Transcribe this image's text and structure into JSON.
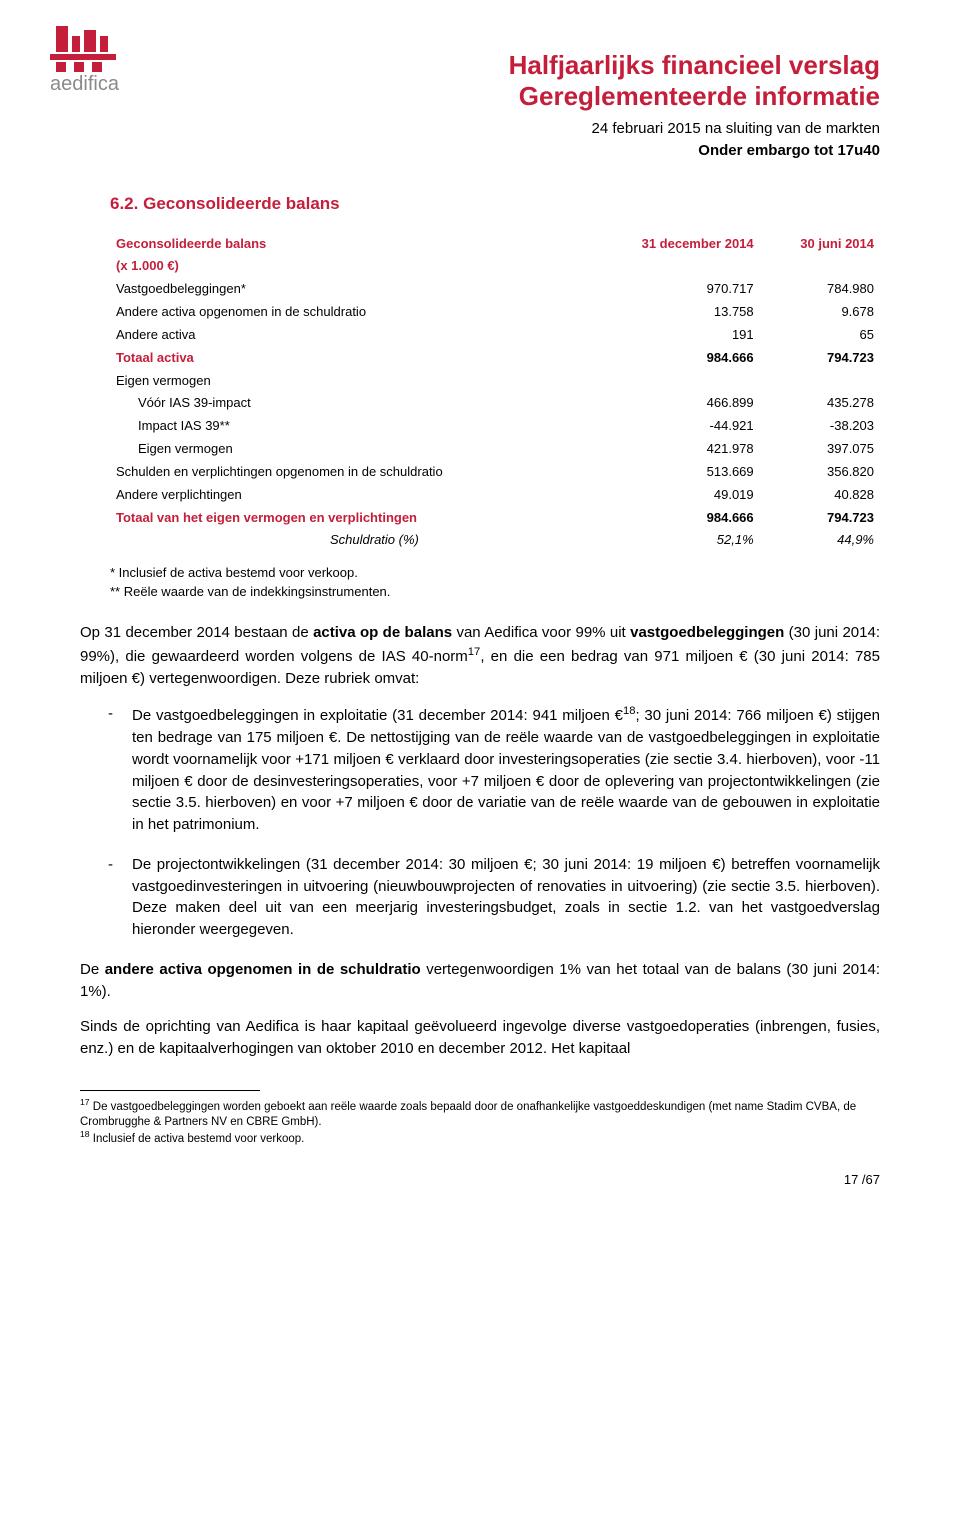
{
  "brand": {
    "name": "aedifica",
    "logo_fill": "#c41e3a",
    "logo_text_color": "#8a8a8a"
  },
  "header": {
    "title1": "Halfjaarlijks financieel verslag",
    "title2": "Gereglementeerde informatie",
    "line1": "24 februari 2015 na sluiting van de markten",
    "line2": "Onder embargo tot 17u40"
  },
  "section": {
    "number": "6.2.",
    "title": "Geconsolideerde balans"
  },
  "table": {
    "header_label": "Geconsolideerde balans",
    "header_sub": "(x 1.000 €)",
    "col1": "31 december 2014",
    "col2": "30 juni 2014",
    "rows": [
      {
        "label": "Vastgoedbeleggingen*",
        "v1": "970.717",
        "v2": "784.980",
        "style": "plain"
      },
      {
        "label": "Andere activa opgenomen in de schuldratio",
        "v1": "13.758",
        "v2": "9.678",
        "style": "plain"
      },
      {
        "label": "Andere activa",
        "v1": "191",
        "v2": "65",
        "style": "plain"
      },
      {
        "label": "Totaal activa",
        "v1": "984.666",
        "v2": "794.723",
        "style": "bold"
      },
      {
        "label": "Eigen vermogen",
        "v1": "",
        "v2": "",
        "style": "plain"
      },
      {
        "label": "Vóór IAS 39-impact",
        "v1": "466.899",
        "v2": "435.278",
        "style": "indent"
      },
      {
        "label": "Impact IAS 39**",
        "v1": "-44.921",
        "v2": "-38.203",
        "style": "indent"
      },
      {
        "label": "Eigen vermogen",
        "v1": "421.978",
        "v2": "397.075",
        "style": "indent"
      },
      {
        "label": "Schulden en verplichtingen opgenomen in de schuldratio",
        "v1": "513.669",
        "v2": "356.820",
        "style": "plain"
      },
      {
        "label": "Andere verplichtingen",
        "v1": "49.019",
        "v2": "40.828",
        "style": "plain"
      },
      {
        "label": "Totaal van het eigen vermogen en verplichtingen",
        "v1": "984.666",
        "v2": "794.723",
        "style": "bold"
      },
      {
        "label": "Schuldratio (%)",
        "v1": "52,1%",
        "v2": "44,9%",
        "style": "italic"
      }
    ]
  },
  "notes": {
    "n1": "* Inclusief de activa bestemd voor verkoop.",
    "n2": "** Reële waarde van de indekkingsinstrumenten."
  },
  "body": {
    "p1a": "Op 31 december 2014 bestaan de ",
    "p1b": "activa op de balans",
    "p1c": " van Aedifica voor 99% uit ",
    "p1d": "vastgoedbeleggingen",
    "p1e": " (30 juni 2014: 99%), die gewaardeerd worden volgens de IAS 40-norm",
    "p1f": ", en die een bedrag van 971 miljoen € (30 juni 2014: 785 miljoen €) vertegenwoordigen. Deze rubriek omvat:",
    "li1": "De vastgoedbeleggingen in exploitatie (31 december 2014: 941 miljoen €",
    "li1b": "; 30 juni 2014: 766 miljoen €) stijgen ten bedrage van 175 miljoen €. De nettostijging van de reële waarde van de vastgoedbeleggingen in exploitatie wordt voornamelijk voor +171 miljoen € verklaard door investeringsoperaties (zie sectie 3.4. hierboven), voor -11 miljoen € door de desinvesteringsoperaties, voor +7 miljoen € door de oplevering van projectontwikkelingen (zie sectie 3.5. hierboven) en voor +7 miljoen € door de variatie van de reële waarde van de gebouwen in exploitatie in het patrimonium.",
    "li2": "De projectontwikkelingen (31 december 2014: 30 miljoen €; 30 juni 2014: 19 miljoen €) betreffen voornamelijk vastgoedinvesteringen in uitvoering (nieuwbouwprojecten of renovaties in uitvoering) (zie sectie 3.5. hierboven). Deze maken deel uit van een meerjarig investeringsbudget, zoals in sectie 1.2. van het vastgoedverslag hieronder weergegeven.",
    "p2a": "De ",
    "p2b": "andere activa opgenomen in de schuldratio",
    "p2c": " vertegenwoordigen 1% van het totaal van de balans (30 juni 2014: 1%).",
    "p3": "Sinds de oprichting van Aedifica is haar kapitaal geëvolueerd ingevolge diverse vastgoedoperaties (inbrengen, fusies, enz.) en de kapitaalverhogingen van oktober 2010 en december 2012. Het kapitaal"
  },
  "footnotes": {
    "f17a": "17",
    "f17b": " De vastgoedbeleggingen worden geboekt aan reële waarde zoals bepaald door de onafhankelijke vastgoeddeskundigen (met name Stadim CVBA, de Crombrugghe & Partners NV en CBRE GmbH).",
    "f18a": "18",
    "f18b": " Inclusief de activa bestemd voor verkoop."
  },
  "pagenum": "17 /67"
}
